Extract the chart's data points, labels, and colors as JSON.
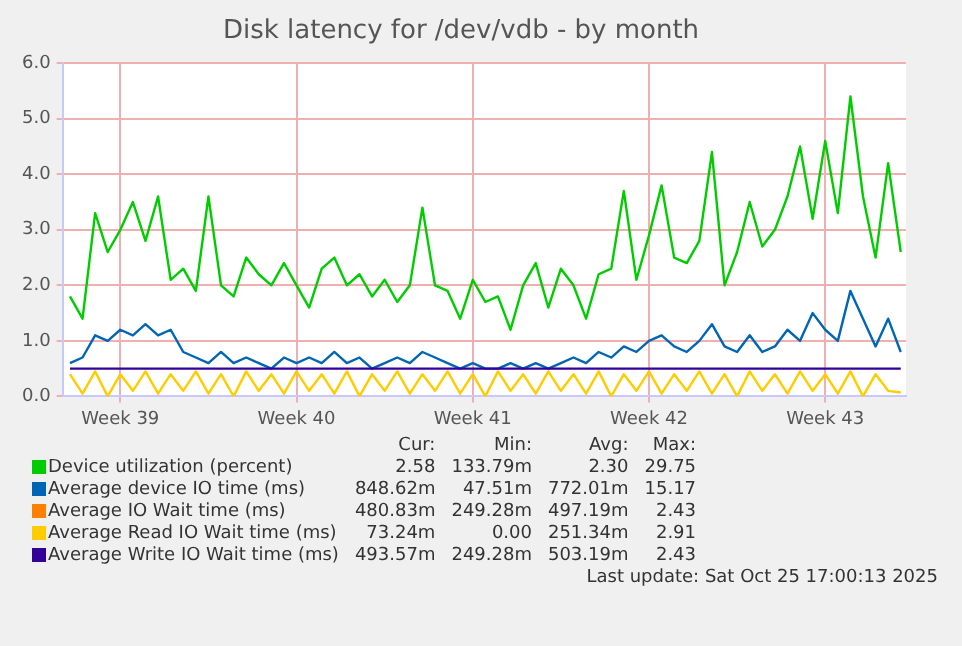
{
  "chart_data": {
    "type": "line",
    "title": "Disk latency for /dev/vdb - by month",
    "x": [
      "2025-09-22T12:00",
      "2025-09-23T00:00",
      "2025-09-23T12:00",
      "2025-09-24T00:00",
      "2025-09-24T12:00",
      "2025-09-25T00:00",
      "2025-09-25T12:00",
      "2025-09-26T00:00",
      "2025-09-26T12:00",
      "2025-09-27T00:00",
      "2025-09-27T12:00",
      "2025-09-28T00:00",
      "2025-09-28T12:00",
      "2025-09-29T00:00",
      "2025-09-29T12:00",
      "2025-09-30T00:00",
      "2025-09-30T12:00",
      "2025-10-01T00:00",
      "2025-10-01T12:00",
      "2025-10-02T00:00",
      "2025-10-02T12:00",
      "2025-10-03T00:00",
      "2025-10-03T12:00",
      "2025-10-04T00:00",
      "2025-10-04T12:00",
      "2025-10-05T00:00",
      "2025-10-05T12:00",
      "2025-10-06T00:00",
      "2025-10-06T12:00",
      "2025-10-07T00:00",
      "2025-10-07T12:00",
      "2025-10-08T00:00",
      "2025-10-08T12:00",
      "2025-10-09T00:00",
      "2025-10-09T12:00",
      "2025-10-10T00:00",
      "2025-10-10T12:00",
      "2025-10-11T00:00",
      "2025-10-11T12:00",
      "2025-10-12T00:00",
      "2025-10-12T12:00",
      "2025-10-13T00:00",
      "2025-10-13T12:00",
      "2025-10-14T00:00",
      "2025-10-14T12:00",
      "2025-10-15T00:00",
      "2025-10-15T12:00",
      "2025-10-16T00:00",
      "2025-10-16T12:00",
      "2025-10-17T00:00",
      "2025-10-17T12:00",
      "2025-10-18T00:00",
      "2025-10-18T12:00",
      "2025-10-19T00:00",
      "2025-10-19T12:00",
      "2025-10-20T00:00",
      "2025-10-20T12:00",
      "2025-10-21T00:00",
      "2025-10-21T12:00",
      "2025-10-22T00:00",
      "2025-10-22T12:00",
      "2025-10-23T00:00",
      "2025-10-23T12:00",
      "2025-10-24T00:00",
      "2025-10-24T12:00",
      "2025-10-25T00:00",
      "2025-10-25T12:00"
    ],
    "series": [
      {
        "name": "Device utilization (percent)",
        "color": "#00cc00",
        "values": [
          1.8,
          1.4,
          3.3,
          2.6,
          3.0,
          3.5,
          2.8,
          3.6,
          2.1,
          2.3,
          1.9,
          3.6,
          2.0,
          1.8,
          2.5,
          2.2,
          2.0,
          2.4,
          2.0,
          1.6,
          2.3,
          2.5,
          2.0,
          2.2,
          1.8,
          2.1,
          1.7,
          2.0,
          3.4,
          2.0,
          1.9,
          1.4,
          2.1,
          1.7,
          1.8,
          1.2,
          2.0,
          2.4,
          1.6,
          2.3,
          2.0,
          1.4,
          2.2,
          2.3,
          3.7,
          2.1,
          2.9,
          3.8,
          2.5,
          2.4,
          2.8,
          4.4,
          2.0,
          2.6,
          3.5,
          2.7,
          3.0,
          3.6,
          4.5,
          3.2,
          4.6,
          3.3,
          5.4,
          3.6,
          2.5,
          4.2,
          2.6
        ]
      },
      {
        "name": "Average device IO time (ms)",
        "color": "#0066b3",
        "values": [
          0.6,
          0.7,
          1.1,
          1.0,
          1.2,
          1.1,
          1.3,
          1.1,
          1.2,
          0.8,
          0.7,
          0.6,
          0.8,
          0.6,
          0.7,
          0.6,
          0.5,
          0.7,
          0.6,
          0.7,
          0.6,
          0.8,
          0.6,
          0.7,
          0.5,
          0.6,
          0.7,
          0.6,
          0.8,
          0.7,
          0.6,
          0.5,
          0.6,
          0.5,
          0.5,
          0.6,
          0.5,
          0.6,
          0.5,
          0.6,
          0.7,
          0.6,
          0.8,
          0.7,
          0.9,
          0.8,
          1.0,
          1.1,
          0.9,
          0.8,
          1.0,
          1.3,
          0.9,
          0.8,
          1.1,
          0.8,
          0.9,
          1.2,
          1.0,
          1.5,
          1.2,
          1.0,
          1.9,
          1.4,
          0.9,
          1.4,
          0.8
        ]
      },
      {
        "name": "Average IO Wait time (ms)",
        "color": "#ff8000",
        "values": [
          null,
          null,
          null,
          null,
          null,
          null,
          null,
          null,
          null,
          null,
          null,
          null,
          null,
          null,
          null,
          null,
          null,
          null,
          null,
          null,
          null,
          null,
          null,
          null,
          null,
          null,
          null,
          null,
          null,
          null,
          null,
          null,
          null,
          null,
          null,
          null,
          null,
          null,
          null,
          null,
          null,
          null,
          null,
          null,
          null,
          null,
          null,
          null,
          null,
          null,
          null,
          null,
          null,
          null,
          null,
          null,
          null,
          null,
          null,
          null,
          null,
          null,
          null,
          null,
          null,
          null,
          null
        ]
      },
      {
        "name": "Average Read IO Wait time (ms)",
        "color": "#ffcc00",
        "values": [
          0.4,
          0.05,
          0.45,
          0.0,
          0.4,
          0.1,
          0.45,
          0.05,
          0.4,
          0.1,
          0.45,
          0.05,
          0.4,
          0.0,
          0.45,
          0.1,
          0.4,
          0.05,
          0.45,
          0.1,
          0.4,
          0.05,
          0.45,
          0.0,
          0.4,
          0.1,
          0.45,
          0.05,
          0.4,
          0.1,
          0.45,
          0.05,
          0.4,
          0.0,
          0.45,
          0.1,
          0.4,
          0.05,
          0.45,
          0.1,
          0.4,
          0.05,
          0.45,
          0.0,
          0.4,
          0.1,
          0.45,
          0.05,
          0.4,
          0.1,
          0.45,
          0.05,
          0.4,
          0.0,
          0.45,
          0.1,
          0.4,
          0.05,
          0.45,
          0.1,
          0.4,
          0.05,
          0.45,
          0.0,
          0.4,
          0.1,
          0.07
        ]
      },
      {
        "name": "Average Write IO Wait time (ms)",
        "color": "#330099",
        "values": [
          0.5,
          0.5,
          0.5,
          0.5,
          0.5,
          0.5,
          0.5,
          0.5,
          0.5,
          0.5,
          0.5,
          0.5,
          0.5,
          0.5,
          0.5,
          0.5,
          0.5,
          0.5,
          0.5,
          0.5,
          0.5,
          0.5,
          0.5,
          0.5,
          0.5,
          0.5,
          0.5,
          0.5,
          0.5,
          0.5,
          0.5,
          0.5,
          0.5,
          0.5,
          0.5,
          0.5,
          0.5,
          0.5,
          0.5,
          0.5,
          0.5,
          0.5,
          0.5,
          0.5,
          0.5,
          0.5,
          0.5,
          0.5,
          0.5,
          0.5,
          0.5,
          0.5,
          0.5,
          0.5,
          0.5,
          0.5,
          0.5,
          0.5,
          0.5,
          0.5,
          0.5,
          0.5,
          0.5,
          0.5,
          0.5,
          0.5,
          0.5
        ]
      }
    ],
    "xlim": [
      "2025-09-22T05:00",
      "2025-10-25T17:00"
    ],
    "xticks": [
      {
        "value": "2025-09-24T12:00",
        "label": "Week 39"
      },
      {
        "value": "2025-10-01T12:00",
        "label": "Week 40"
      },
      {
        "value": "2025-10-08T12:00",
        "label": "Week 41"
      },
      {
        "value": "2025-10-15T12:00",
        "label": "Week 42"
      },
      {
        "value": "2025-10-22T12:00",
        "label": "Week 43"
      }
    ],
    "ylim": [
      0,
      6
    ],
    "yticks": [
      {
        "value": 0,
        "label": "0.0"
      },
      {
        "value": 1,
        "label": "1.0"
      },
      {
        "value": 2,
        "label": "2.0"
      },
      {
        "value": 3,
        "label": "3.0"
      },
      {
        "value": 4,
        "label": "4.0"
      },
      {
        "value": 5,
        "label": "5.0"
      },
      {
        "value": 6,
        "label": "6.0"
      }
    ],
    "grid": true,
    "legend": "bottom",
    "marker": "none",
    "line_style": "solid",
    "annotations": [
      "Cur:",
      "Min:",
      "Avg:",
      "Max:",
      "2.58",
      "133.79m",
      "2.30",
      "29.75",
      "848.62m",
      "47.51m",
      "772.01m",
      "15.17",
      "480.83m",
      "249.28m",
      "497.19m",
      "2.43",
      "73.24m",
      "0.00",
      "251.34m",
      "2.91",
      "493.57m",
      "249.28m",
      "503.19m",
      "2.43",
      "Last update: Sat Oct 25 17:00:13 2025"
    ]
  }
}
